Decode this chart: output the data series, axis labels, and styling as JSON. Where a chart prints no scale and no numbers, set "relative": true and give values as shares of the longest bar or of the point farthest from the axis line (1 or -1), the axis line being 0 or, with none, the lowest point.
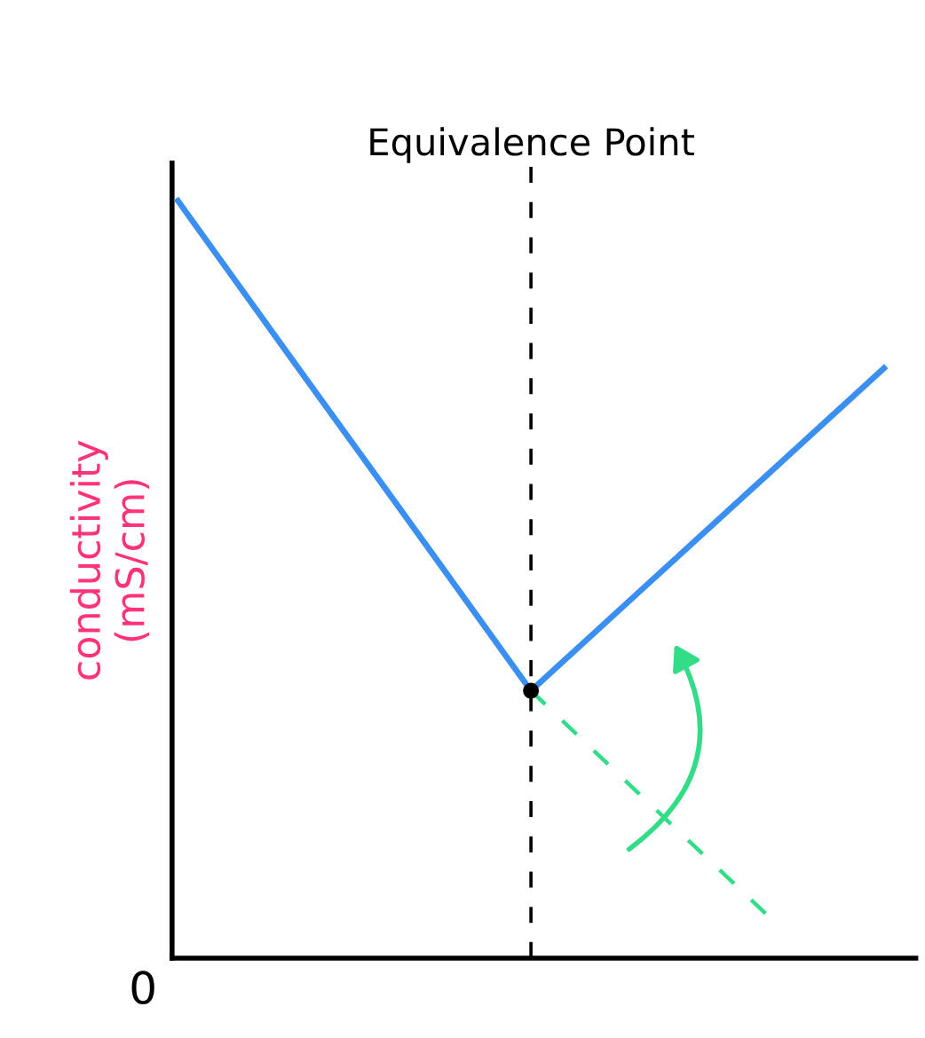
{
  "chart_data": {
    "type": "line",
    "relative": true,
    "ylabel": "conductivity\n(mS/cm)",
    "categories": [
      null,
      null,
      null,
      null,
      null,
      null,
      null
    ],
    "series": [
      {
        "color": "#3b8ff0",
        "values": [
          1,
          0.784,
          0.569,
          0.353,
          0.495,
          0.637,
          0.779
        ],
        "line_style": "solid"
      },
      {
        "color": "#33dd88",
        "values": [
          null,
          null,
          null,
          0.353,
          0.205,
          0.058,
          null
        ],
        "line_style": "dashed"
      }
    ],
    "annotations": [
      "Equivalence Point",
      "0"
    ],
    "grid": false,
    "legend": false,
    "marker": "none"
  }
}
